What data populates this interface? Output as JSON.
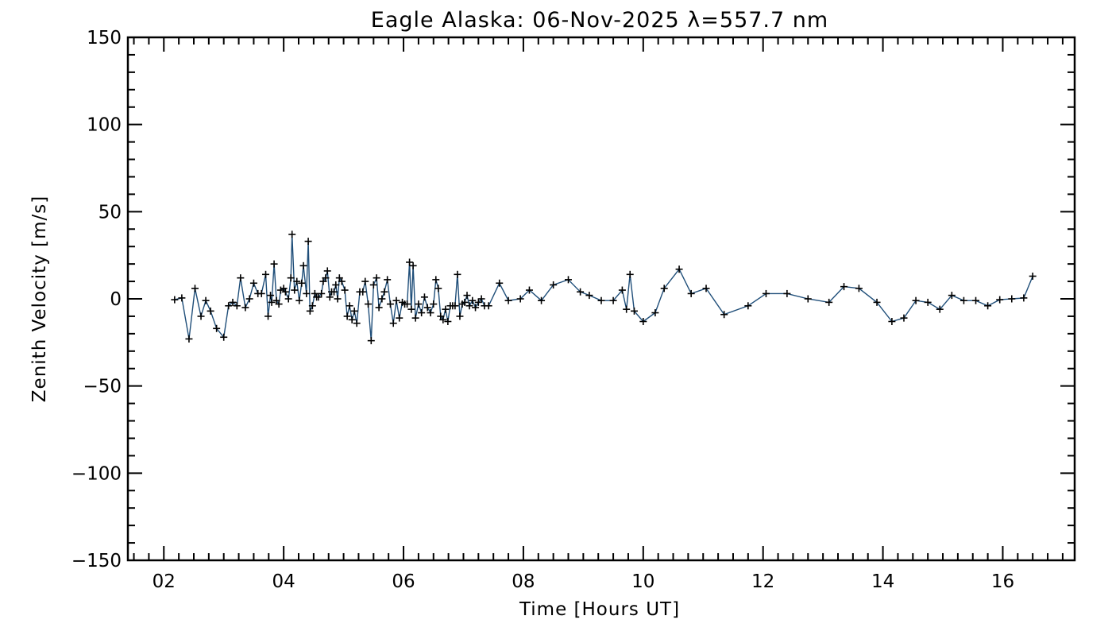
{
  "chart_data": {
    "type": "line",
    "title": "Eagle Alaska: 06-Nov-2025 λ=557.7 nm",
    "xlabel": "Time [Hours UT]",
    "ylabel": "Zenith Velocity [m/s]",
    "xlim": [
      1.4,
      17.2
    ],
    "ylim": [
      -150,
      150
    ],
    "x_ticks": [
      "02",
      "04",
      "06",
      "08",
      "10",
      "12",
      "14",
      "16"
    ],
    "x_tick_values": [
      2,
      4,
      6,
      8,
      10,
      12,
      14,
      16
    ],
    "y_ticks": [
      "150",
      "100",
      "50",
      "0",
      "−50",
      "−100",
      "−150"
    ],
    "y_tick_values": [
      150,
      100,
      50,
      0,
      -50,
      -100,
      -150
    ],
    "grid": false,
    "line_color": "#1f4e79",
    "marker": "plus",
    "series": [
      {
        "x": [
          2.18,
          2.3,
          2.42,
          2.52,
          2.62,
          2.7,
          2.78,
          2.88,
          3.0,
          3.08,
          3.15,
          3.22,
          3.28,
          3.36,
          3.43,
          3.5,
          3.57,
          3.63,
          3.7,
          3.74,
          3.78,
          3.8,
          3.84,
          3.88,
          3.92,
          3.95,
          4.0,
          4.03,
          4.08,
          4.12,
          4.14,
          4.18,
          4.22,
          4.26,
          4.3,
          4.33,
          4.38,
          4.41,
          4.44,
          4.48,
          4.52,
          4.55,
          4.58,
          4.63,
          4.66,
          4.7,
          4.73,
          4.77,
          4.8,
          4.84,
          4.87,
          4.9,
          4.93,
          4.97,
          5.02,
          5.06,
          5.1,
          5.14,
          5.18,
          5.22,
          5.27,
          5.32,
          5.36,
          5.41,
          5.46,
          5.5,
          5.55,
          5.59,
          5.64,
          5.68,
          5.73,
          5.78,
          5.83,
          5.88,
          5.93,
          5.98,
          6.02,
          6.06,
          6.1,
          6.13,
          6.16,
          6.2,
          6.25,
          6.3,
          6.35,
          6.4,
          6.45,
          6.5,
          6.54,
          6.58,
          6.62,
          6.66,
          6.7,
          6.74,
          6.78,
          6.82,
          6.86,
          6.9,
          6.94,
          6.98,
          7.02,
          7.06,
          7.1,
          7.15,
          7.2,
          7.25,
          7.3,
          7.35,
          7.42,
          7.6,
          7.75,
          7.95,
          8.1,
          8.3,
          8.5,
          8.75,
          8.95,
          9.1,
          9.3,
          9.5,
          9.65,
          9.72,
          9.78,
          9.85,
          10.0,
          10.2,
          10.35,
          10.6,
          10.8,
          11.05,
          11.35,
          11.75,
          12.05,
          12.4,
          12.75,
          13.1,
          13.35,
          13.6,
          13.9,
          14.15,
          14.35,
          14.55,
          14.75,
          14.95,
          15.15,
          15.35,
          15.55,
          15.75,
          15.95,
          16.15,
          16.35,
          16.5
        ],
        "values": [
          -0.5,
          0.5,
          -23,
          6,
          -10,
          -1,
          -7,
          -17,
          -22,
          -4,
          -2,
          -4,
          12,
          -5,
          0,
          9,
          3,
          3,
          14,
          -10,
          2,
          -2,
          20,
          -1,
          -3,
          5,
          6,
          4,
          0,
          12,
          37,
          5,
          10,
          -1,
          9,
          19,
          3,
          33,
          -7,
          -4,
          3,
          1,
          1,
          3,
          10,
          12,
          16,
          1,
          4,
          4,
          8,
          0,
          12,
          10,
          5,
          -10,
          -4,
          -12,
          -7,
          -14,
          4,
          4,
          10,
          -3,
          -24,
          8,
          12,
          -5,
          0,
          4,
          11,
          -3,
          -14,
          -1,
          -11,
          -2,
          -3,
          -3,
          21,
          -6,
          19,
          -11,
          -3,
          -8,
          1,
          -5,
          -8,
          -3,
          11,
          6,
          -10,
          -12,
          -6,
          -13,
          -4,
          -4,
          -4,
          14,
          -10,
          -3,
          -2,
          2,
          -4,
          -1,
          -5,
          -2,
          0,
          -4,
          -4,
          9,
          -1,
          0,
          5,
          -1,
          8,
          11,
          4,
          2,
          -1,
          -1,
          5,
          -6,
          14,
          -7,
          -13,
          -8,
          6,
          17,
          3,
          6,
          -9,
          -4,
          3,
          3,
          0,
          -2,
          7,
          6,
          -2,
          -13,
          -11,
          -1,
          -2,
          -6,
          2,
          -1,
          -1,
          -4,
          -0.5,
          0,
          0.5,
          13
        ]
      }
    ]
  }
}
